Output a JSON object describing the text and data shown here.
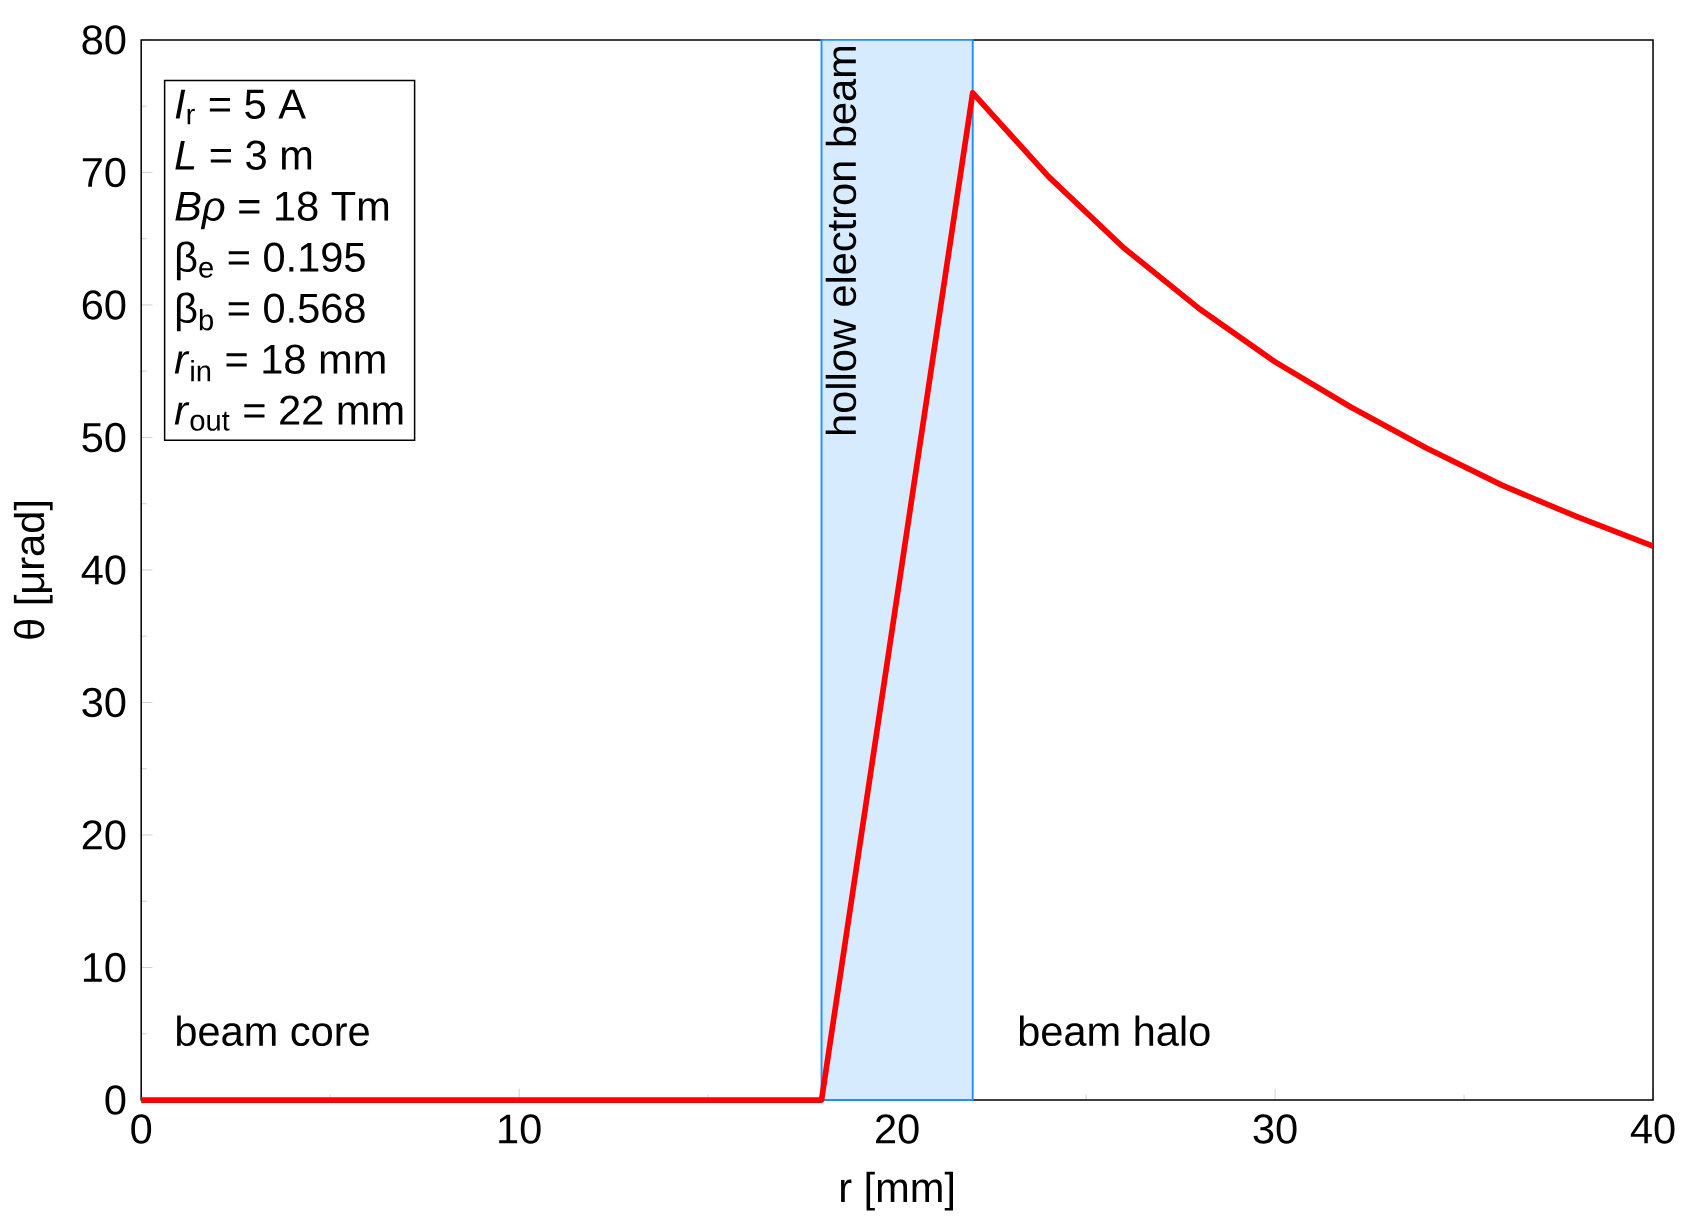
{
  "chart_data": {
    "type": "line",
    "xlabel": "r [mm]",
    "ylabel": "θ [μrad]",
    "xlim": [
      0,
      40
    ],
    "xticks": [
      0,
      10,
      20,
      30,
      40
    ],
    "ylim": [
      0,
      80
    ],
    "yticks": [
      0,
      10,
      20,
      30,
      40,
      50,
      60,
      70,
      80
    ],
    "marker": "none",
    "line_style": "solid",
    "series": [
      {
        "color": "#ff0000",
        "x": [
          0,
          18,
          22,
          24,
          26,
          28,
          30,
          32,
          34,
          36,
          38,
          40
        ],
        "values": [
          0,
          0,
          76,
          69.7,
          64.3,
          59.7,
          55.7,
          52.3,
          49.2,
          46.4,
          44,
          41.8
        ]
      }
    ],
    "bands": [
      {
        "axis": "x",
        "from": 18,
        "to": 22,
        "label": "hollow electron beam",
        "color": "#1e90ff"
      }
    ],
    "annotations": [
      "*I*$_{r}$ = 5 A",
      "*L* = 3 m",
      "*Bρ* = 18 Tm",
      "β$_{e}$ = 0.195",
      "β$_{b}$ = 0.568",
      "*r*$_{in}$ = 18 mm",
      "*r*$_{out}$ = 22 mm",
      "beam core",
      "beam halo"
    ]
  }
}
